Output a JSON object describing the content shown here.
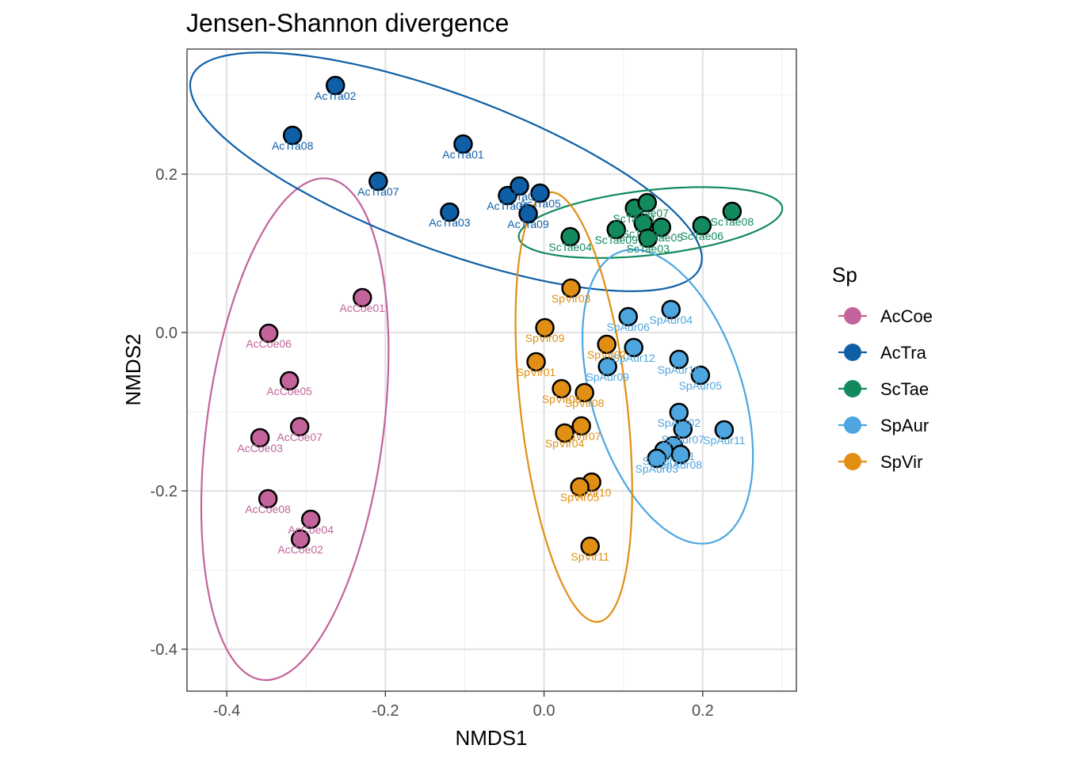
{
  "chart_data": {
    "type": "scatter",
    "title": "Jensen-Shannon divergence",
    "xlabel": "NMDS1",
    "ylabel": "NMDS2",
    "xlim": [
      -0.45,
      0.318
    ],
    "ylim": [
      -0.453,
      0.358
    ],
    "x_ticks": [
      -0.4,
      -0.2,
      0.0,
      0.2
    ],
    "x_tick_labels": [
      "-0.4",
      "-0.2",
      "0.0",
      "0.2"
    ],
    "y_ticks": [
      -0.4,
      -0.2,
      0.0,
      0.2
    ],
    "y_tick_labels": [
      "-0.4",
      "-0.2",
      "0.0",
      "0.2"
    ],
    "grid": true,
    "ellipses": true,
    "legend": {
      "title": "Sp",
      "position": "right"
    },
    "series": [
      {
        "name": "AcCoe",
        "color": "#c2649a",
        "points": [
          {
            "label": "AcCoe01",
            "x": -0.229,
            "y": 0.044
          },
          {
            "label": "AcCoe06",
            "x": -0.347,
            "y": -0.001
          },
          {
            "label": "AcCoe05",
            "x": -0.321,
            "y": -0.061
          },
          {
            "label": "AcCoe07",
            "x": -0.308,
            "y": -0.119
          },
          {
            "label": "AcCoe03",
            "x": -0.358,
            "y": -0.133
          },
          {
            "label": "AcCoe08",
            "x": -0.348,
            "y": -0.21
          },
          {
            "label": "AcCoe04",
            "x": -0.294,
            "y": -0.236
          },
          {
            "label": "AcCoe02",
            "x": -0.307,
            "y": -0.261
          }
        ]
      },
      {
        "name": "AcTra",
        "color": "#0f5fa6",
        "points": [
          {
            "label": "AcTra02",
            "x": -0.263,
            "y": 0.312
          },
          {
            "label": "AcTra08",
            "x": -0.317,
            "y": 0.249
          },
          {
            "label": "AcTra01",
            "x": -0.102,
            "y": 0.238
          },
          {
            "label": "AcTra07",
            "x": -0.209,
            "y": 0.191
          },
          {
            "label": "AcTra03",
            "x": -0.119,
            "y": 0.152
          },
          {
            "label": "AcTra04",
            "x": -0.046,
            "y": 0.173
          },
          {
            "label": "AcTra06",
            "x": -0.031,
            "y": 0.185
          },
          {
            "label": "AcTra05",
            "x": -0.005,
            "y": 0.176
          },
          {
            "label": "AcTra09",
            "x": -0.02,
            "y": 0.15
          }
        ]
      },
      {
        "name": "ScTae",
        "color": "#138a5e",
        "points": [
          {
            "label": "ScTae08",
            "x": 0.237,
            "y": 0.153
          },
          {
            "label": "ScTae01",
            "x": 0.114,
            "y": 0.157
          },
          {
            "label": "ScTae07",
            "x": 0.13,
            "y": 0.164
          },
          {
            "label": "ScTae06",
            "x": 0.199,
            "y": 0.135
          },
          {
            "label": "ScTae02",
            "x": 0.125,
            "y": 0.138
          },
          {
            "label": "ScTae09",
            "x": 0.091,
            "y": 0.13
          },
          {
            "label": "ScTae05",
            "x": 0.148,
            "y": 0.133
          },
          {
            "label": "ScTae03",
            "x": 0.131,
            "y": 0.119
          },
          {
            "label": "ScTae04",
            "x": 0.033,
            "y": 0.121
          }
        ]
      },
      {
        "name": "SpAur",
        "color": "#4da6e0",
        "points": [
          {
            "label": "SpAur04",
            "x": 0.16,
            "y": 0.029
          },
          {
            "label": "SpAur06",
            "x": 0.106,
            "y": 0.02
          },
          {
            "label": "SpAur12",
            "x": 0.113,
            "y": -0.019
          },
          {
            "label": "SpAur10",
            "x": 0.17,
            "y": -0.034
          },
          {
            "label": "SpAur05",
            "x": 0.197,
            "y": -0.054
          },
          {
            "label": "SpAur09",
            "x": 0.08,
            "y": -0.043
          },
          {
            "label": "SpAur02",
            "x": 0.17,
            "y": -0.101
          },
          {
            "label": "SpAur11",
            "x": 0.227,
            "y": -0.123
          },
          {
            "label": "SpAur07",
            "x": 0.175,
            "y": -0.122
          },
          {
            "label": "SpAur01",
            "x": 0.163,
            "y": -0.143
          },
          {
            "label": "SpAur08",
            "x": 0.172,
            "y": -0.154
          },
          {
            "label": "SpAur13",
            "x": 0.151,
            "y": -0.149
          },
          {
            "label": "SpAur03",
            "x": 0.142,
            "y": -0.159
          }
        ]
      },
      {
        "name": "SpVir",
        "color": "#e08f14",
        "points": [
          {
            "label": "SpVir03",
            "x": 0.034,
            "y": 0.056
          },
          {
            "label": "SpVir09",
            "x": 0.001,
            "y": 0.006
          },
          {
            "label": "SpVir02",
            "x": 0.079,
            "y": -0.015
          },
          {
            "label": "SpVir01",
            "x": -0.01,
            "y": -0.037
          },
          {
            "label": "SpVir06",
            "x": 0.022,
            "y": -0.071
          },
          {
            "label": "SpVir08",
            "x": 0.051,
            "y": -0.076
          },
          {
            "label": "SpVir07",
            "x": 0.047,
            "y": -0.118
          },
          {
            "label": "SpVir04",
            "x": 0.026,
            "y": -0.127
          },
          {
            "label": "SpVir10",
            "x": 0.06,
            "y": -0.189
          },
          {
            "label": "SpVir05",
            "x": 0.045,
            "y": -0.195
          },
          {
            "label": "SpVir11",
            "x": 0.058,
            "y": -0.27
          }
        ]
      }
    ]
  }
}
